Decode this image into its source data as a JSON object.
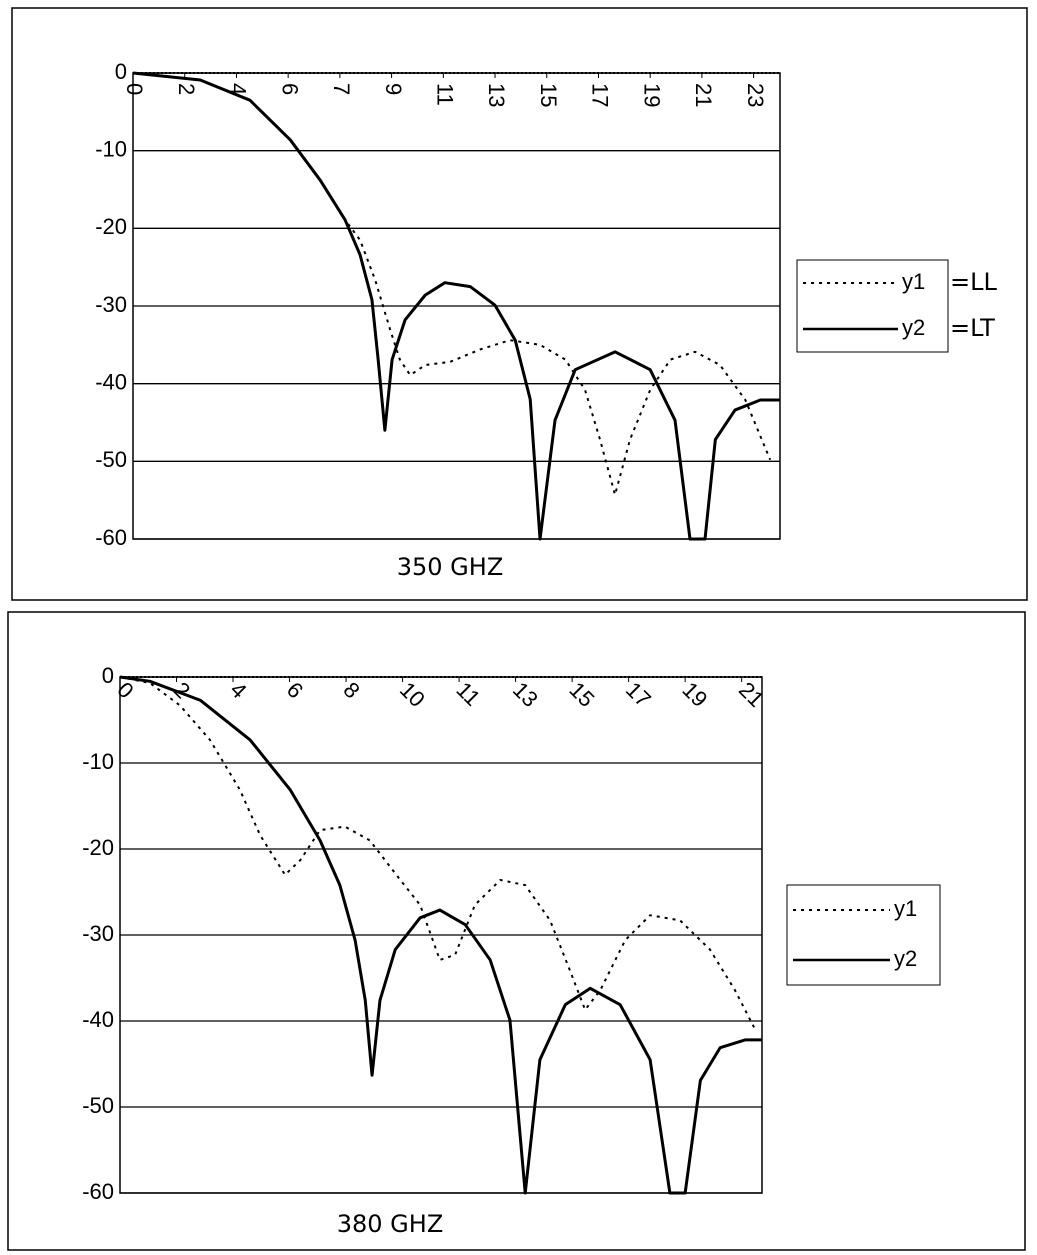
{
  "chart_data": [
    {
      "type": "line",
      "xlabel": "350 GHZ",
      "xlim": [
        0,
        12.51
      ],
      "ylim": [
        -60,
        0
      ],
      "xticks": [
        0,
        {
          "value": 1,
          "label": "2"
        },
        {
          "value": 2,
          "label": "4"
        },
        {
          "value": 3,
          "label": "6"
        },
        {
          "value": 4,
          "label": "7"
        },
        {
          "value": 5,
          "label": "9"
        },
        {
          "value": 6,
          "label": "11"
        },
        {
          "value": 7,
          "label": "13"
        },
        {
          "value": 8,
          "label": "15"
        },
        {
          "value": 9,
          "label": "17"
        },
        {
          "value": 10,
          "label": "19"
        },
        {
          "value": 11,
          "label": "21"
        },
        {
          "value": 12,
          "label": "23"
        }
      ],
      "yticks": [
        0,
        -10,
        -20,
        -30,
        -40,
        -50,
        -60
      ],
      "xtick_rotation": 90,
      "grid": true,
      "legend_notes": [
        "=LL",
        "=LT"
      ],
      "series": [
        {
          "name": "y1",
          "color": "#000000",
          "dash": "dotted",
          "x": [
            0,
            1.3,
            2.26,
            3.04,
            3.62,
            4.1,
            4.39,
            4.68,
            4.97,
            5.16,
            5.36,
            5.65,
            6.13,
            6.71,
            7.29,
            7.87,
            8.36,
            8.74,
            9.03,
            9.32,
            9.61,
            10.0,
            10.39,
            10.87,
            11.35,
            11.84,
            12.32
          ],
          "values": [
            0,
            -0.9,
            -3.5,
            -8.6,
            -13.8,
            -18.9,
            -21.5,
            -26.6,
            -33,
            -36.9,
            -38.9,
            -37.6,
            -37.2,
            -35.6,
            -34.4,
            -35,
            -36.9,
            -40.8,
            -47.2,
            -54.3,
            -47.2,
            -40.8,
            -36.9,
            -35.9,
            -37.6,
            -42.1,
            -49.8
          ]
        },
        {
          "name": "y2",
          "color": "#000000",
          "dash": "solid",
          "x": [
            0,
            1.3,
            2.26,
            3.04,
            3.62,
            4.1,
            4.39,
            4.62,
            4.74,
            4.87,
            5.01,
            5.26,
            5.65,
            6.03,
            6.52,
            7.0,
            7.39,
            7.68,
            7.87,
            8.16,
            8.55,
            9.32,
            10.0,
            10.48,
            10.77,
            11.06,
            11.26,
            11.64,
            12.13,
            12.51
          ],
          "values": [
            0,
            -0.9,
            -3.5,
            -8.6,
            -13.8,
            -18.9,
            -23.4,
            -29.2,
            -36.9,
            -46,
            -36.9,
            -31.8,
            -28.6,
            -27,
            -27.5,
            -29.9,
            -34.4,
            -42,
            -60,
            -44.7,
            -38.2,
            -35.9,
            -38.2,
            -44.7,
            -60,
            -60,
            -47.2,
            -43.4,
            -42.1,
            -42.1
          ]
        }
      ]
    },
    {
      "type": "line",
      "xlabel": "380 GHZ",
      "xlim": [
        0,
        11.36
      ],
      "ylim": [
        -60,
        0
      ],
      "xticks": [
        0,
        {
          "value": 1,
          "label": "2"
        },
        {
          "value": 2,
          "label": "4"
        },
        {
          "value": 3,
          "label": "6"
        },
        {
          "value": 4,
          "label": "8"
        },
        {
          "value": 5,
          "label": "10"
        },
        {
          "value": 6,
          "label": "11"
        },
        {
          "value": 7,
          "label": "13"
        },
        {
          "value": 8,
          "label": "15"
        },
        {
          "value": 9,
          "label": "17"
        },
        {
          "value": 10,
          "label": "19"
        },
        {
          "value": 11,
          "label": "21"
        }
      ],
      "yticks": [
        0,
        -10,
        -20,
        -30,
        -40,
        -50,
        -60
      ],
      "xtick_rotation": 45,
      "grid": true,
      "series": [
        {
          "name": "y1",
          "color": "#000000",
          "dash": "dotted",
          "x": [
            0,
            0.53,
            1.06,
            1.59,
            2.12,
            2.48,
            2.92,
            3.19,
            3.54,
            3.98,
            4.42,
            4.96,
            5.31,
            5.66,
            5.93,
            6.28,
            6.73,
            7.17,
            7.61,
            7.96,
            8.23,
            8.5,
            8.94,
            9.38,
            9.91,
            10.44,
            10.88,
            11.24
          ],
          "values": [
            0,
            -0.7,
            -3.3,
            -7.3,
            -13.1,
            -18.4,
            -23,
            -21.3,
            -17.8,
            -17.4,
            -19,
            -23.6,
            -26.5,
            -32.9,
            -32.3,
            -26.5,
            -23.6,
            -24.2,
            -28.3,
            -34.1,
            -38.7,
            -36.4,
            -30.6,
            -27.7,
            -28.3,
            -31.7,
            -36.4,
            -41
          ]
        },
        {
          "name": "y2",
          "color": "#000000",
          "dash": "solid",
          "x": [
            0,
            0.53,
            1.42,
            2.3,
            3.01,
            3.54,
            3.89,
            4.16,
            4.34,
            4.46,
            4.6,
            4.87,
            5.31,
            5.66,
            6.11,
            6.55,
            6.9,
            7.17,
            7.43,
            7.88,
            8.32,
            8.85,
            9.38,
            9.73,
            10.0,
            10.27,
            10.62,
            11.06,
            11.36
          ],
          "values": [
            0,
            -0.5,
            -2.7,
            -7.3,
            -13.1,
            -19,
            -24.2,
            -30.6,
            -37.6,
            -46.3,
            -37.6,
            -31.7,
            -28,
            -27.1,
            -28.8,
            -32.9,
            -39.9,
            -60,
            -44.5,
            -38.1,
            -36.2,
            -38.1,
            -44.5,
            -60,
            -60,
            -46.9,
            -43.1,
            -42.2,
            -42.2
          ]
        }
      ]
    }
  ]
}
